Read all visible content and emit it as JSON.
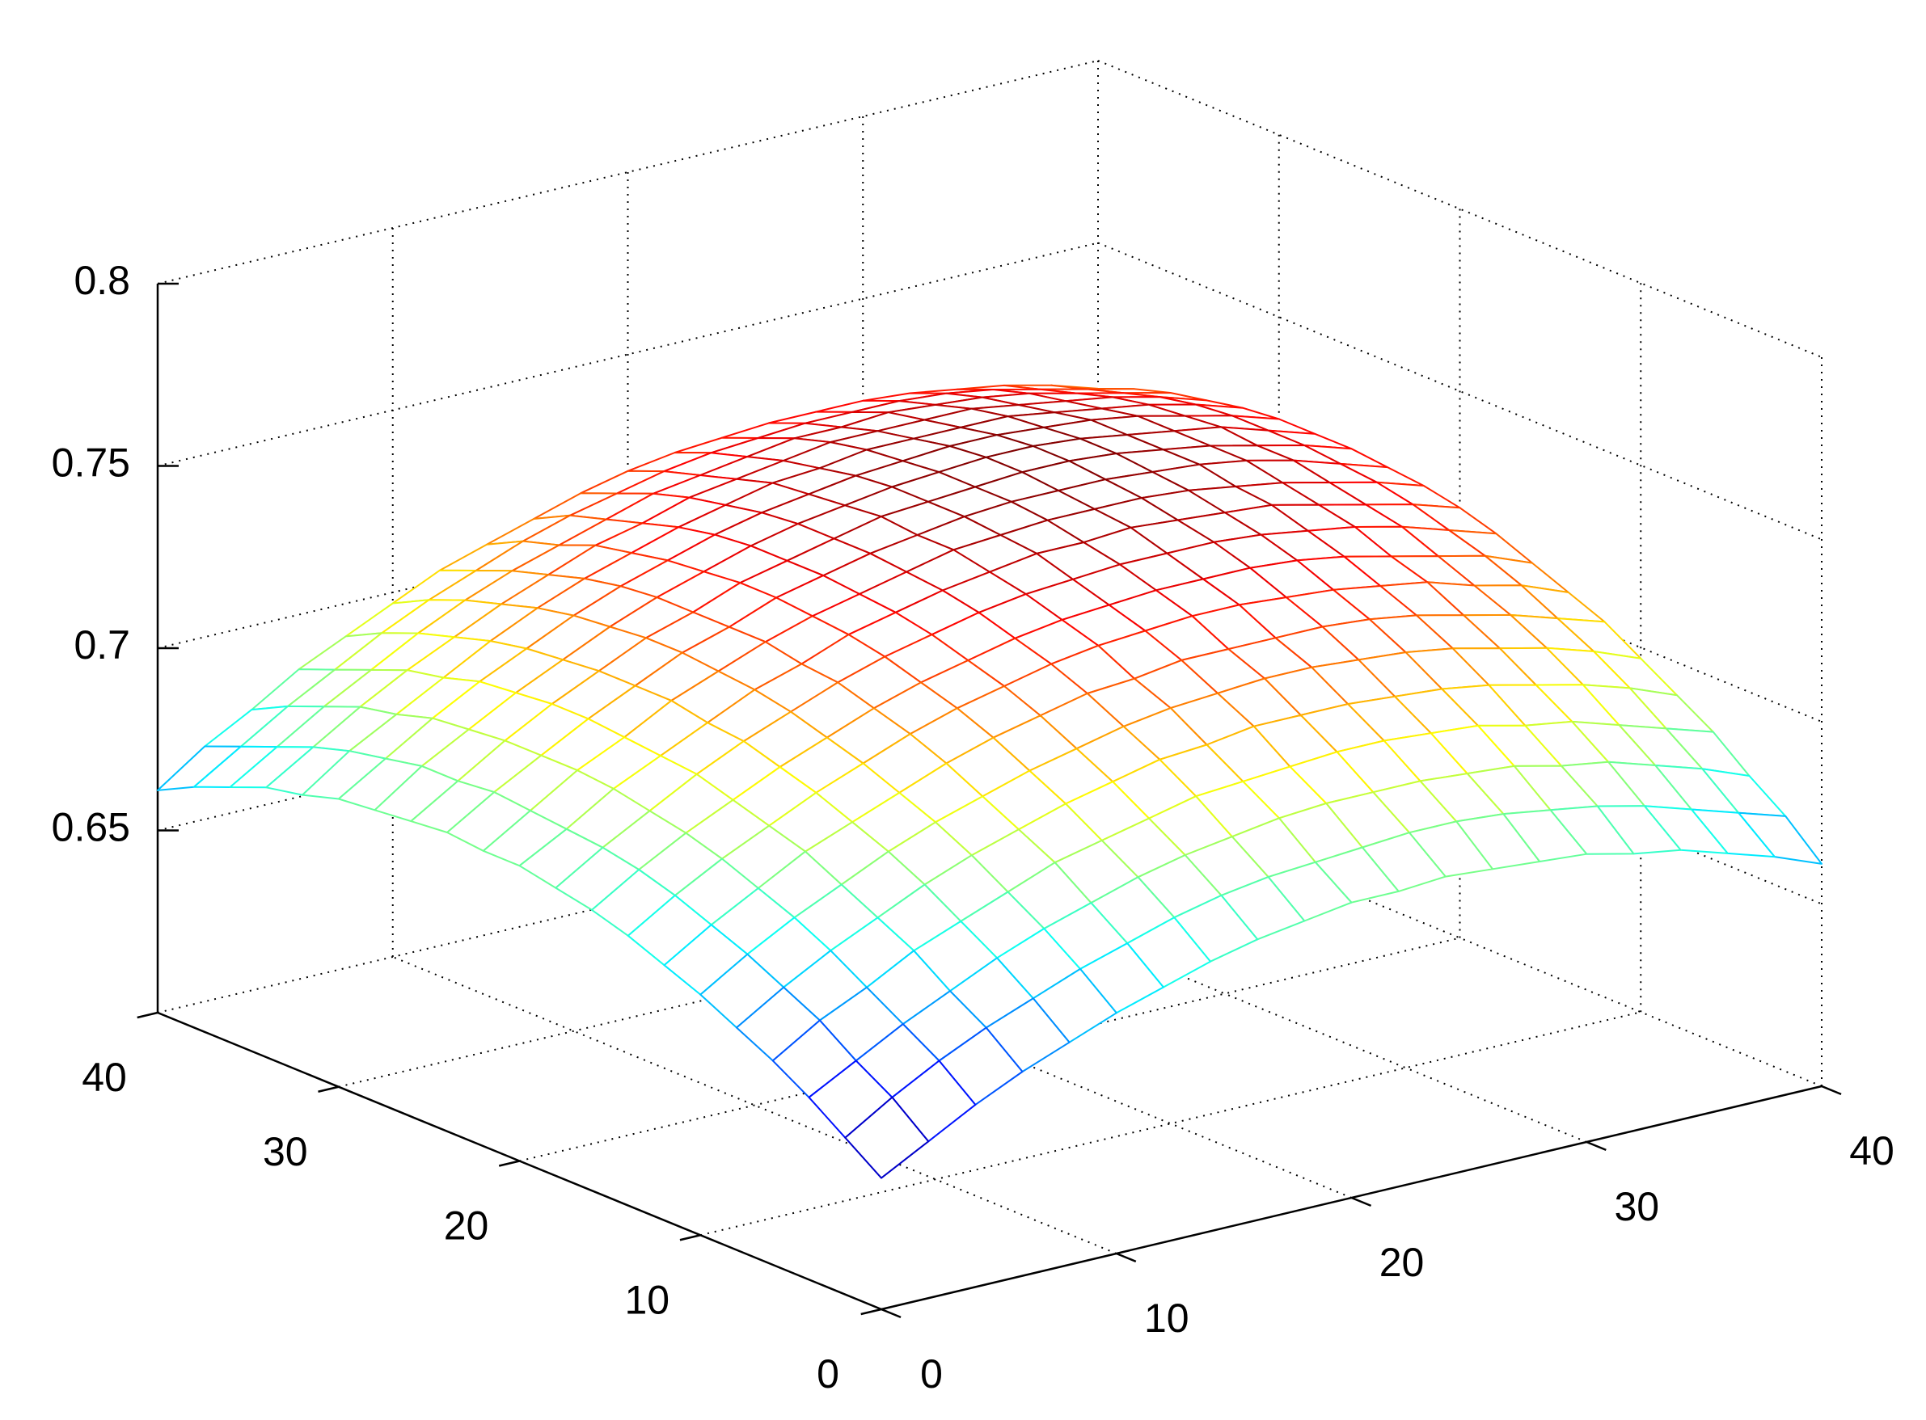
{
  "chart_data": {
    "type": "mesh",
    "colormap": "jet",
    "grid": true,
    "x": [
      0,
      2,
      4,
      6,
      8,
      10,
      12,
      14,
      16,
      18,
      20,
      22,
      24,
      26,
      28,
      30,
      32,
      34,
      36,
      38,
      40
    ],
    "y": [
      0,
      2,
      4,
      6,
      8,
      10,
      12,
      14,
      16,
      18,
      20,
      22,
      24,
      26,
      28,
      30,
      32,
      34,
      36,
      38,
      40
    ],
    "z": [
      [
        0.636,
        0.643,
        0.65,
        0.656,
        0.661,
        0.666,
        0.67,
        0.674,
        0.677,
        0.679,
        0.681,
        0.681,
        0.682,
        0.681,
        0.68,
        0.679,
        0.676,
        0.674,
        0.67,
        0.666,
        0.661
      ],
      [
        0.643,
        0.651,
        0.658,
        0.664,
        0.669,
        0.674,
        0.678,
        0.682,
        0.685,
        0.687,
        0.688,
        0.689,
        0.69,
        0.69,
        0.689,
        0.687,
        0.685,
        0.682,
        0.678,
        0.674,
        0.67
      ],
      [
        0.65,
        0.657,
        0.664,
        0.67,
        0.676,
        0.681,
        0.685,
        0.689,
        0.692,
        0.694,
        0.696,
        0.697,
        0.697,
        0.697,
        0.696,
        0.695,
        0.692,
        0.69,
        0.686,
        0.682,
        0.677
      ],
      [
        0.656,
        0.664,
        0.67,
        0.677,
        0.682,
        0.687,
        0.692,
        0.695,
        0.698,
        0.701,
        0.702,
        0.703,
        0.704,
        0.704,
        0.703,
        0.702,
        0.699,
        0.697,
        0.693,
        0.689,
        0.685
      ],
      [
        0.661,
        0.669,
        0.676,
        0.682,
        0.688,
        0.693,
        0.697,
        0.701,
        0.704,
        0.707,
        0.708,
        0.71,
        0.71,
        0.71,
        0.709,
        0.708,
        0.706,
        0.703,
        0.7,
        0.696,
        0.691
      ],
      [
        0.666,
        0.674,
        0.681,
        0.687,
        0.693,
        0.698,
        0.702,
        0.706,
        0.709,
        0.712,
        0.714,
        0.715,
        0.716,
        0.716,
        0.715,
        0.714,
        0.712,
        0.709,
        0.706,
        0.702,
        0.697
      ],
      [
        0.67,
        0.678,
        0.685,
        0.692,
        0.697,
        0.702,
        0.707,
        0.711,
        0.714,
        0.717,
        0.718,
        0.72,
        0.72,
        0.72,
        0.72,
        0.719,
        0.717,
        0.714,
        0.711,
        0.707,
        0.703
      ],
      [
        0.674,
        0.682,
        0.689,
        0.695,
        0.701,
        0.706,
        0.711,
        0.715,
        0.718,
        0.721,
        0.723,
        0.724,
        0.725,
        0.725,
        0.724,
        0.723,
        0.721,
        0.719,
        0.715,
        0.712,
        0.707
      ],
      [
        0.677,
        0.685,
        0.692,
        0.698,
        0.704,
        0.709,
        0.714,
        0.718,
        0.721,
        0.724,
        0.726,
        0.727,
        0.728,
        0.728,
        0.728,
        0.727,
        0.725,
        0.722,
        0.719,
        0.716,
        0.711
      ],
      [
        0.679,
        0.687,
        0.694,
        0.701,
        0.707,
        0.712,
        0.717,
        0.721,
        0.724,
        0.727,
        0.729,
        0.73,
        0.731,
        0.731,
        0.731,
        0.73,
        0.728,
        0.726,
        0.723,
        0.719,
        0.715
      ],
      [
        0.681,
        0.688,
        0.696,
        0.702,
        0.708,
        0.714,
        0.718,
        0.723,
        0.726,
        0.729,
        0.731,
        0.733,
        0.733,
        0.734,
        0.733,
        0.732,
        0.731,
        0.728,
        0.725,
        0.722,
        0.718
      ],
      [
        0.681,
        0.689,
        0.697,
        0.703,
        0.71,
        0.715,
        0.72,
        0.724,
        0.727,
        0.73,
        0.733,
        0.734,
        0.735,
        0.735,
        0.735,
        0.734,
        0.732,
        0.73,
        0.727,
        0.724,
        0.72
      ],
      [
        0.682,
        0.69,
        0.697,
        0.704,
        0.71,
        0.716,
        0.72,
        0.725,
        0.728,
        0.731,
        0.733,
        0.735,
        0.736,
        0.736,
        0.736,
        0.735,
        0.734,
        0.732,
        0.729,
        0.725,
        0.721
      ],
      [
        0.681,
        0.689,
        0.697,
        0.704,
        0.71,
        0.716,
        0.72,
        0.725,
        0.728,
        0.731,
        0.734,
        0.735,
        0.736,
        0.737,
        0.737,
        0.736,
        0.734,
        0.732,
        0.729,
        0.726,
        0.722
      ],
      [
        0.68,
        0.689,
        0.696,
        0.703,
        0.709,
        0.715,
        0.72,
        0.724,
        0.728,
        0.731,
        0.733,
        0.735,
        0.736,
        0.737,
        0.737,
        0.736,
        0.734,
        0.732,
        0.73,
        0.726,
        0.722
      ],
      [
        0.679,
        0.687,
        0.695,
        0.702,
        0.708,
        0.714,
        0.719,
        0.723,
        0.727,
        0.73,
        0.732,
        0.734,
        0.735,
        0.736,
        0.736,
        0.735,
        0.734,
        0.732,
        0.729,
        0.726,
        0.722
      ],
      [
        0.676,
        0.685,
        0.692,
        0.699,
        0.706,
        0.712,
        0.717,
        0.721,
        0.725,
        0.728,
        0.731,
        0.732,
        0.734,
        0.734,
        0.734,
        0.734,
        0.732,
        0.73,
        0.728,
        0.725,
        0.721
      ],
      [
        0.674,
        0.682,
        0.69,
        0.697,
        0.703,
        0.709,
        0.714,
        0.719,
        0.722,
        0.726,
        0.728,
        0.73,
        0.732,
        0.732,
        0.732,
        0.732,
        0.73,
        0.728,
        0.726,
        0.723,
        0.719
      ],
      [
        0.67,
        0.678,
        0.686,
        0.693,
        0.7,
        0.706,
        0.711,
        0.715,
        0.719,
        0.723,
        0.725,
        0.727,
        0.729,
        0.729,
        0.73,
        0.729,
        0.728,
        0.726,
        0.723,
        0.72,
        0.717
      ],
      [
        0.666,
        0.674,
        0.682,
        0.689,
        0.696,
        0.702,
        0.707,
        0.712,
        0.716,
        0.719,
        0.722,
        0.724,
        0.725,
        0.726,
        0.726,
        0.726,
        0.725,
        0.723,
        0.72,
        0.717,
        0.714
      ],
      [
        0.661,
        0.67,
        0.677,
        0.685,
        0.691,
        0.697,
        0.703,
        0.707,
        0.711,
        0.715,
        0.718,
        0.72,
        0.721,
        0.722,
        0.722,
        0.722,
        0.721,
        0.719,
        0.717,
        0.714,
        0.71
      ]
    ],
    "xlim": [
      0,
      40
    ],
    "ylim": [
      0,
      40
    ],
    "zlim": [
      0.6,
      0.8
    ],
    "xticks": [
      0,
      10,
      20,
      30,
      40
    ],
    "yticks": [
      0,
      10,
      20,
      30,
      40
    ],
    "zticks": [
      0.65,
      0.7,
      0.75,
      0.8
    ]
  }
}
